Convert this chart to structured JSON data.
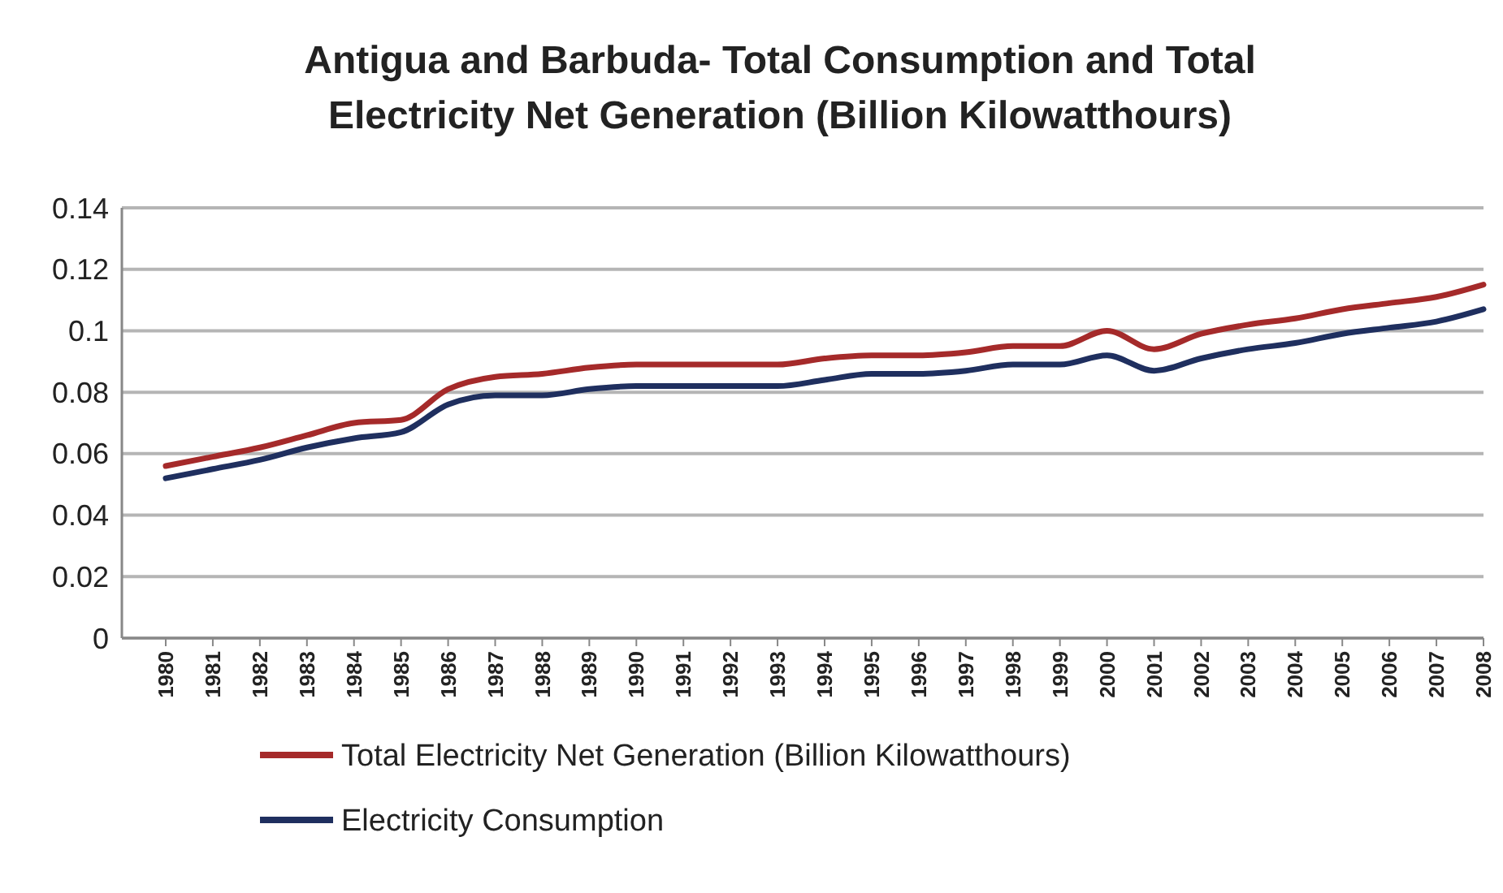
{
  "chart_data": {
    "type": "line",
    "title": "Antigua and Barbuda- Total Consumption and Total Electricity Net Generation (Billion Kilowatthours)",
    "categories": [
      "1980",
      "1981",
      "1982",
      "1983",
      "1984",
      "1985",
      "1986",
      "1987",
      "1988",
      "1989",
      "1990",
      "1991",
      "1992",
      "1993",
      "1994",
      "1995",
      "1996",
      "1997",
      "1998",
      "1999",
      "2000",
      "2001",
      "2002",
      "2003",
      "2004",
      "2005",
      "2006",
      "2007",
      "2008"
    ],
    "series": [
      {
        "name": "Total Electricity Net Generation (Billion Kilowatthours)",
        "color": "#a52a2a",
        "values": [
          0.056,
          0.059,
          0.062,
          0.066,
          0.07,
          0.071,
          0.081,
          0.085,
          0.086,
          0.088,
          0.089,
          0.089,
          0.089,
          0.089,
          0.091,
          0.092,
          0.092,
          0.093,
          0.095,
          0.095,
          0.1,
          0.094,
          0.099,
          0.102,
          0.104,
          0.107,
          0.109,
          0.111,
          0.115
        ]
      },
      {
        "name": "Electricity Consumption",
        "color": "#1f2f5f",
        "values": [
          0.052,
          0.055,
          0.058,
          0.062,
          0.065,
          0.067,
          0.076,
          0.079,
          0.079,
          0.081,
          0.082,
          0.082,
          0.082,
          0.082,
          0.084,
          0.086,
          0.086,
          0.087,
          0.089,
          0.089,
          0.092,
          0.087,
          0.091,
          0.094,
          0.096,
          0.099,
          0.101,
          0.103,
          0.107
        ]
      }
    ],
    "ylim": [
      0,
      0.14
    ],
    "yticks": [
      0,
      0.02,
      0.04,
      0.06,
      0.08,
      0.1,
      0.12,
      0.14
    ],
    "grid": "y",
    "legend": "bottom",
    "marker": "none",
    "line_style": "solid"
  }
}
